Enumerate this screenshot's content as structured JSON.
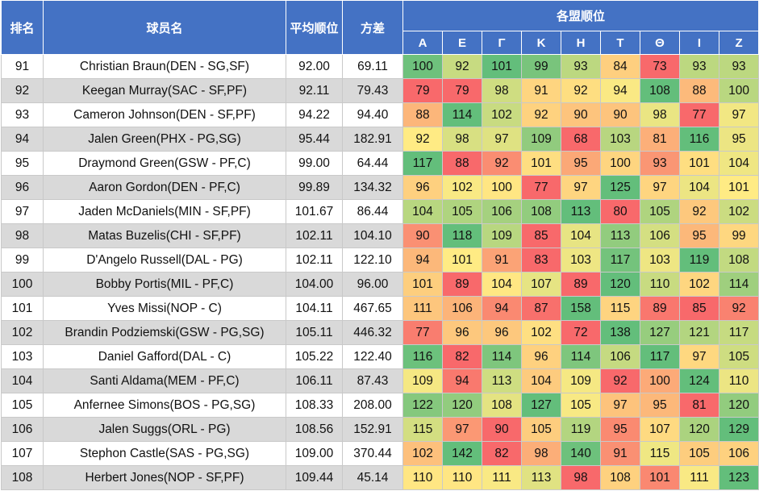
{
  "headers": {
    "rank": "排名",
    "player": "球员名",
    "avg": "平均顺位",
    "variance": "方差",
    "leagues_group": "各盟顺位",
    "leagues": [
      "Α",
      "Ε",
      "Γ",
      "Κ",
      "Η",
      "Τ",
      "Θ",
      "Ι",
      "Ζ"
    ]
  },
  "rows": [
    {
      "rank": "91",
      "player": "Christian Braun(DEN - SG,SF)",
      "avg": "92.00",
      "variance": "69.11",
      "picks": [
        100,
        92,
        101,
        99,
        93,
        84,
        73,
        93,
        93
      ]
    },
    {
      "rank": "92",
      "player": "Keegan Murray(SAC - SF,PF)",
      "avg": "92.11",
      "variance": "79.43",
      "picks": [
        79,
        79,
        98,
        91,
        92,
        94,
        108,
        88,
        100
      ]
    },
    {
      "rank": "93",
      "player": "Cameron Johnson(DEN - SF,PF)",
      "avg": "94.22",
      "variance": "94.40",
      "picks": [
        88,
        114,
        102,
        92,
        90,
        90,
        98,
        77,
        97
      ]
    },
    {
      "rank": "94",
      "player": "Jalen Green(PHX - PG,SG)",
      "avg": "95.44",
      "variance": "182.91",
      "picks": [
        92,
        98,
        97,
        109,
        68,
        103,
        81,
        116,
        95
      ]
    },
    {
      "rank": "95",
      "player": "Draymond Green(GSW - PF,C)",
      "avg": "99.00",
      "variance": "64.44",
      "picks": [
        117,
        88,
        92,
        101,
        95,
        100,
        93,
        101,
        104
      ]
    },
    {
      "rank": "96",
      "player": "Aaron Gordon(DEN - PF,C)",
      "avg": "99.89",
      "variance": "134.32",
      "picks": [
        96,
        102,
        100,
        77,
        97,
        125,
        97,
        104,
        101
      ]
    },
    {
      "rank": "97",
      "player": "Jaden McDaniels(MIN - SF,PF)",
      "avg": "101.67",
      "variance": "86.44",
      "picks": [
        104,
        105,
        106,
        108,
        113,
        80,
        105,
        92,
        102
      ]
    },
    {
      "rank": "98",
      "player": "Matas Buzelis(CHI - SF,PF)",
      "avg": "102.11",
      "variance": "104.10",
      "picks": [
        90,
        118,
        109,
        85,
        104,
        113,
        106,
        95,
        99
      ]
    },
    {
      "rank": "99",
      "player": "D'Angelo Russell(DAL - PG)",
      "avg": "102.11",
      "variance": "122.10",
      "picks": [
        94,
        101,
        91,
        83,
        103,
        117,
        103,
        119,
        108
      ]
    },
    {
      "rank": "100",
      "player": "Bobby Portis(MIL - PF,C)",
      "avg": "104.00",
      "variance": "96.00",
      "picks": [
        101,
        89,
        104,
        107,
        89,
        120,
        110,
        102,
        114
      ]
    },
    {
      "rank": "101",
      "player": "Yves Missi(NOP - C)",
      "avg": "104.11",
      "variance": "467.65",
      "picks": [
        111,
        106,
        94,
        87,
        158,
        115,
        89,
        85,
        92
      ]
    },
    {
      "rank": "102",
      "player": "Brandin Podziemski(GSW - PG,SG)",
      "avg": "105.11",
      "variance": "446.32",
      "picks": [
        77,
        96,
        96,
        102,
        72,
        138,
        127,
        121,
        117
      ]
    },
    {
      "rank": "103",
      "player": "Daniel Gafford(DAL - C)",
      "avg": "105.22",
      "variance": "122.40",
      "picks": [
        116,
        82,
        114,
        96,
        114,
        106,
        117,
        97,
        105
      ]
    },
    {
      "rank": "104",
      "player": "Santi Aldama(MEM - PF,C)",
      "avg": "106.11",
      "variance": "87.43",
      "picks": [
        109,
        94,
        113,
        104,
        109,
        92,
        100,
        124,
        110
      ]
    },
    {
      "rank": "105",
      "player": "Anfernee Simons(BOS - PG,SG)",
      "avg": "108.33",
      "variance": "208.00",
      "picks": [
        122,
        120,
        108,
        127,
        105,
        97,
        95,
        81,
        120
      ]
    },
    {
      "rank": "106",
      "player": "Jalen Suggs(ORL - PG)",
      "avg": "108.56",
      "variance": "152.91",
      "picks": [
        115,
        97,
        90,
        105,
        119,
        95,
        107,
        120,
        129
      ]
    },
    {
      "rank": "107",
      "player": "Stephon Castle(SAS - PG,SG)",
      "avg": "109.00",
      "variance": "370.44",
      "picks": [
        102,
        142,
        82,
        98,
        140,
        91,
        115,
        105,
        106
      ]
    },
    {
      "rank": "108",
      "player": "Herbert Jones(NOP - SF,PF)",
      "avg": "109.44",
      "variance": "45.14",
      "picks": [
        110,
        110,
        111,
        113,
        98,
        108,
        101,
        111,
        123
      ]
    }
  ],
  "colors": {
    "header_bg": "#4472c4",
    "header_text": "#ffffff",
    "alt_row": "#d9d9d9",
    "scale_low": "#f8696b",
    "scale_mid": "#ffeb84",
    "scale_high": "#63be7b"
  }
}
